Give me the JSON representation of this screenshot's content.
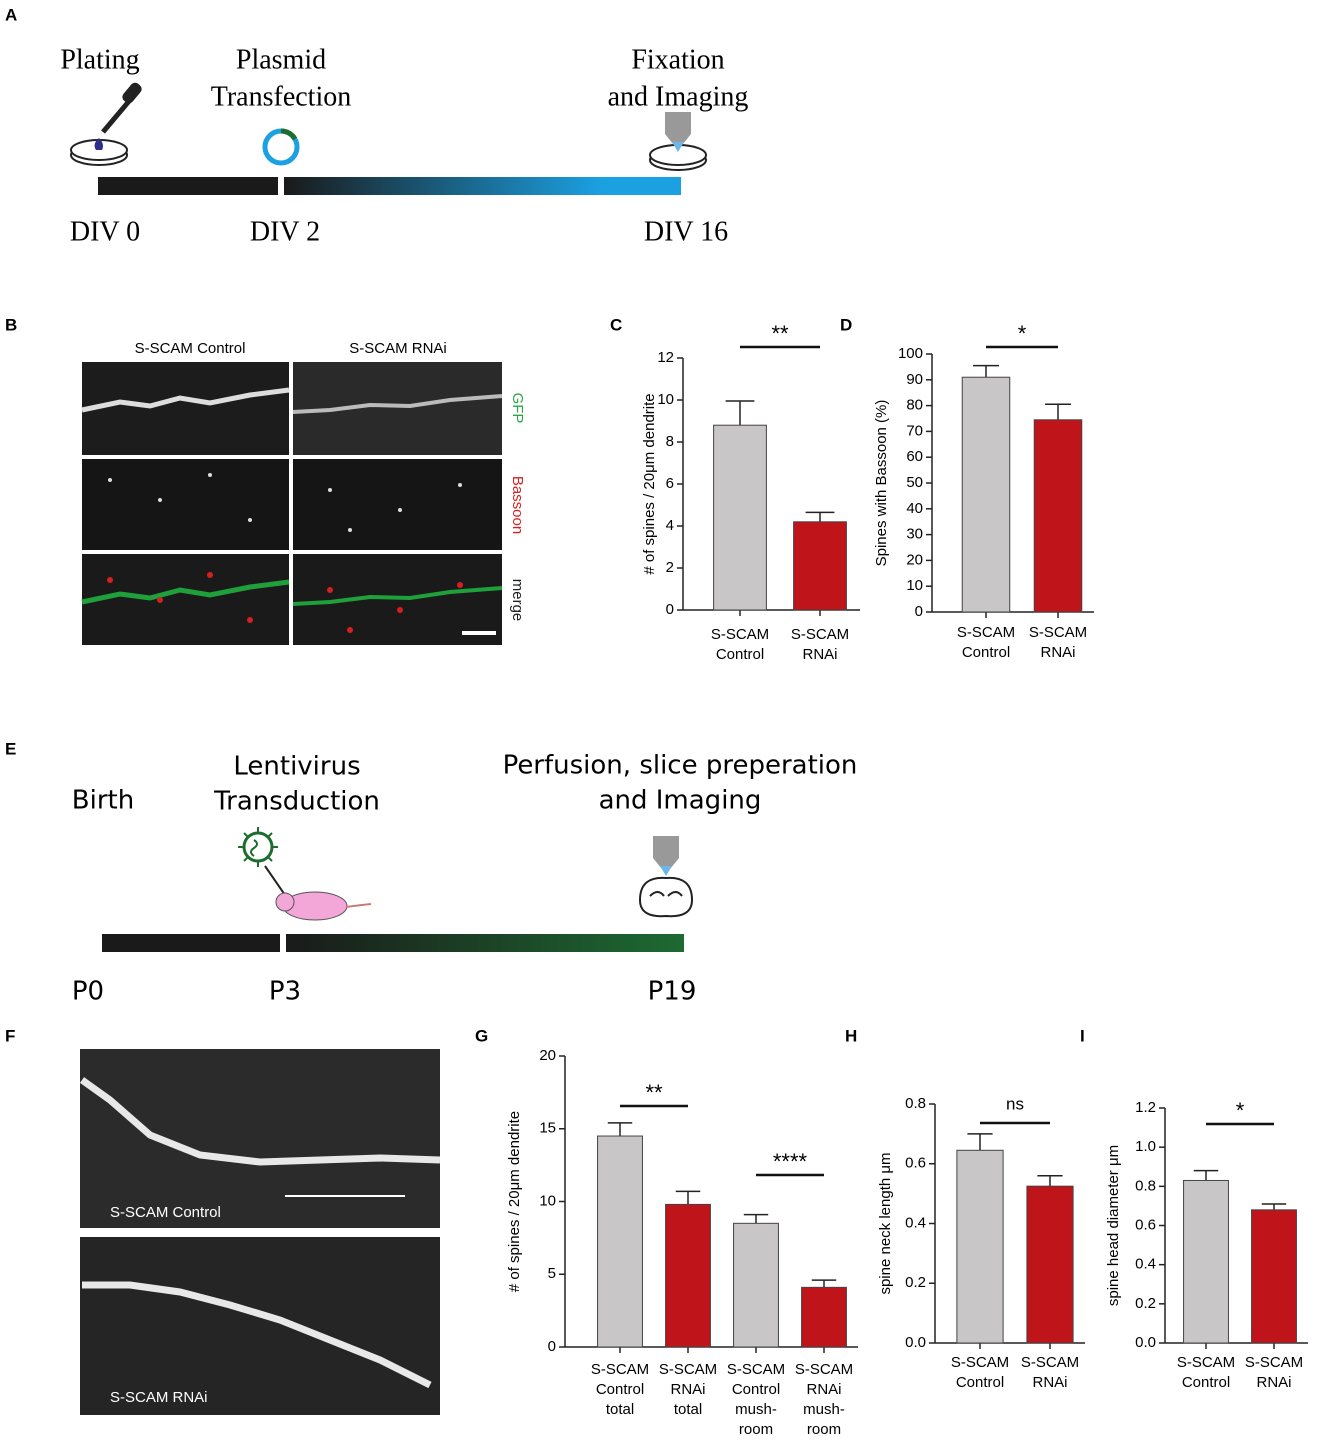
{
  "timelines": [
    {
      "panel": "A",
      "events": [
        {
          "label": [
            "Plating"
          ],
          "time": "DIV 0"
        },
        {
          "label": [
            "Plasmid",
            "Transfection"
          ],
          "time": "DIV 2"
        },
        {
          "label": [
            "Fixation",
            "and Imaging"
          ],
          "time": "DIV 16"
        }
      ]
    },
    {
      "panel": "E",
      "events": [
        {
          "label": [
            "Birth"
          ],
          "time": "P0"
        },
        {
          "label": [
            "Lentivirus",
            "Transduction"
          ],
          "time": "P3"
        },
        {
          "label": [
            "Perfusion, slice preperation",
            "and Imaging"
          ],
          "time": "P19"
        }
      ]
    }
  ],
  "panel_B": {
    "panel": "B",
    "columns": [
      "S-SCAM Control",
      "S-SCAM RNAi"
    ],
    "rows": [
      "GFP",
      "Bassoon",
      "merge"
    ]
  },
  "panel_F": {
    "panel": "F",
    "labels": [
      "S-SCAM Control",
      "S-SCAM RNAi"
    ]
  },
  "chart_data": [
    {
      "type": "bar",
      "panel": "C",
      "ylabel": "# of spines / 20μm dendrite",
      "categories": [
        [
          "S-SCAM",
          "Control"
        ],
        [
          "S-SCAM",
          "RNAi"
        ]
      ],
      "values": [
        8.8,
        4.2
      ],
      "errors": [
        1.15,
        0.45
      ],
      "colors": [
        "#c8c6c6",
        "#c0141b"
      ],
      "ylim": [
        0,
        12
      ],
      "yticks": [
        0,
        2,
        4,
        6,
        8,
        10,
        12
      ],
      "annotations": [
        {
          "text": "**",
          "from": 0,
          "to": 1
        }
      ]
    },
    {
      "type": "bar",
      "panel": "D",
      "ylabel": "Spines with Bassoon (%)",
      "categories": [
        [
          "S-SCAM",
          "Control"
        ],
        [
          "S-SCAM",
          "RNAi"
        ]
      ],
      "values": [
        91,
        74.5
      ],
      "errors": [
        4.5,
        6
      ],
      "colors": [
        "#c8c6c6",
        "#c0141b"
      ],
      "ylim": [
        0,
        100
      ],
      "yticks": [
        0,
        10,
        20,
        30,
        40,
        50,
        60,
        70,
        80,
        90,
        100
      ],
      "annotations": [
        {
          "text": "*",
          "from": 0,
          "to": 1
        }
      ]
    },
    {
      "type": "bar",
      "panel": "G",
      "ylabel": "# of spines / 20μm dendrite",
      "categories": [
        [
          "S-SCAM",
          "Control",
          "total"
        ],
        [
          "S-SCAM",
          "RNAi",
          "total"
        ],
        [
          "S-SCAM",
          "Control",
          "mush-",
          "room"
        ],
        [
          "S-SCAM",
          "RNAi",
          "mush-",
          "room"
        ]
      ],
      "values": [
        14.5,
        9.8,
        8.5,
        4.1
      ],
      "errors": [
        0.9,
        0.9,
        0.6,
        0.5
      ],
      "colors": [
        "#c8c6c6",
        "#c0141b",
        "#c8c6c6",
        "#c0141b"
      ],
      "ylim": [
        0,
        20
      ],
      "yticks": [
        0,
        5,
        10,
        15,
        20
      ],
      "annotations": [
        {
          "text": "**",
          "from": 0,
          "to": 1
        },
        {
          "text": "****",
          "from": 2,
          "to": 3
        }
      ]
    },
    {
      "type": "bar",
      "panel": "H",
      "ylabel": "spine neck length μm",
      "categories": [
        [
          "S-SCAM",
          "Control"
        ],
        [
          "S-SCAM",
          "RNAi"
        ]
      ],
      "values": [
        0.645,
        0.525
      ],
      "errors": [
        0.055,
        0.035
      ],
      "colors": [
        "#c8c6c6",
        "#c0141b"
      ],
      "ylim": [
        0,
        0.8
      ],
      "yticks": [
        {
          "value": 0,
          "label": "0.0"
        },
        0.2,
        0.4,
        0.6,
        0.8
      ],
      "annotations": [
        {
          "text": "ns",
          "from": 0,
          "to": 1
        }
      ]
    },
    {
      "type": "bar",
      "panel": "I",
      "ylabel": "spine head diameter μm",
      "categories": [
        [
          "S-SCAM",
          "Control"
        ],
        [
          "S-SCAM",
          "RNAi"
        ]
      ],
      "values": [
        0.83,
        0.68
      ],
      "errors": [
        0.05,
        0.03
      ],
      "colors": [
        "#c8c6c6",
        "#c0141b"
      ],
      "ylim": [
        0,
        1.2
      ],
      "yticks": [
        {
          "value": 0,
          "label": "0.0"
        },
        0.2,
        0.4,
        0.6,
        0.8,
        {
          "value": 1,
          "label": "1.0"
        },
        1.2
      ],
      "annotations": [
        {
          "text": "*",
          "from": 0,
          "to": 1
        }
      ]
    }
  ]
}
